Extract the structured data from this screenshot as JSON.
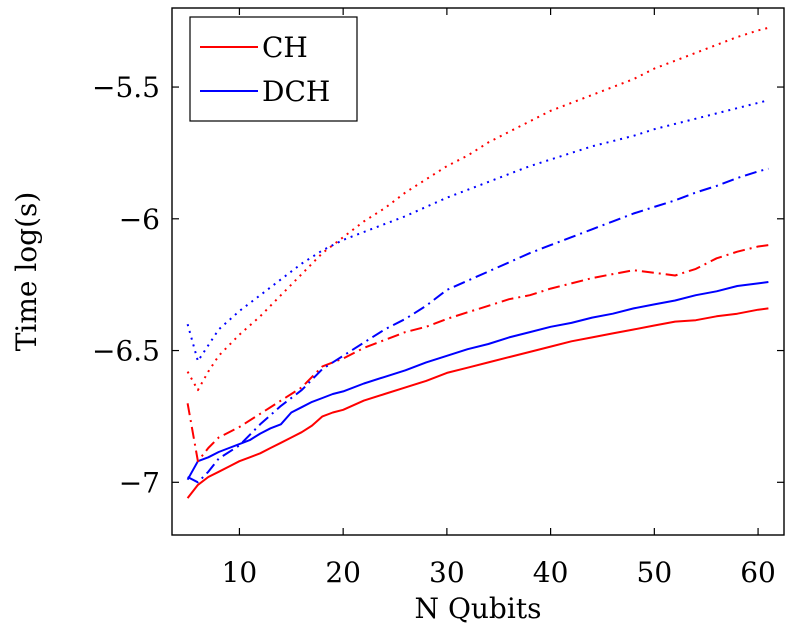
{
  "chart_data": {
    "type": "line",
    "title": "",
    "xlabel": "N Qubits",
    "ylabel": "Time log(s)",
    "xlim": [
      3.5,
      62.5
    ],
    "ylim": [
      -7.2,
      -5.2
    ],
    "grid": false,
    "legend_position": "top-left",
    "x_ticks": [
      10,
      20,
      30,
      40,
      50,
      60
    ],
    "x_tick_labels": [
      "10",
      "20",
      "30",
      "40",
      "50",
      "60"
    ],
    "y_ticks": [
      -7,
      -6.5,
      -6,
      -5.5
    ],
    "y_tick_labels": [
      "−7",
      "−6.5",
      "−6",
      "−5.5"
    ],
    "legend": [
      {
        "label": "CH",
        "color": "#ff0000"
      },
      {
        "label": "DCH",
        "color": "#0000ff"
      }
    ],
    "series": [
      {
        "label_ref": "CH",
        "color": "#ff0000",
        "style": "solid",
        "points": [
          [
            5,
            -7.06
          ],
          [
            6,
            -7.01
          ],
          [
            7,
            -6.98
          ],
          [
            8,
            -6.96
          ],
          [
            9,
            -6.94
          ],
          [
            10,
            -6.92
          ],
          [
            11,
            -6.905
          ],
          [
            12,
            -6.89
          ],
          [
            13,
            -6.87
          ],
          [
            14,
            -6.85
          ],
          [
            15,
            -6.83
          ],
          [
            16,
            -6.81
          ],
          [
            17,
            -6.785
          ],
          [
            18,
            -6.75
          ],
          [
            19,
            -6.735
          ],
          [
            20,
            -6.725
          ],
          [
            22,
            -6.69
          ],
          [
            24,
            -6.665
          ],
          [
            26,
            -6.64
          ],
          [
            28,
            -6.615
          ],
          [
            30,
            -6.585
          ],
          [
            32,
            -6.565
          ],
          [
            34,
            -6.545
          ],
          [
            36,
            -6.525
          ],
          [
            38,
            -6.505
          ],
          [
            40,
            -6.485
          ],
          [
            42,
            -6.465
          ],
          [
            44,
            -6.45
          ],
          [
            46,
            -6.435
          ],
          [
            48,
            -6.42
          ],
          [
            50,
            -6.405
          ],
          [
            52,
            -6.39
          ],
          [
            54,
            -6.385
          ],
          [
            56,
            -6.37
          ],
          [
            58,
            -6.36
          ],
          [
            60,
            -6.345
          ],
          [
            61,
            -6.34
          ]
        ]
      },
      {
        "label_ref": "DCH",
        "color": "#0000ff",
        "style": "solid",
        "points": [
          [
            5,
            -6.99
          ],
          [
            6,
            -6.92
          ],
          [
            7,
            -6.905
          ],
          [
            8,
            -6.885
          ],
          [
            9,
            -6.87
          ],
          [
            10,
            -6.855
          ],
          [
            11,
            -6.84
          ],
          [
            12,
            -6.815
          ],
          [
            13,
            -6.795
          ],
          [
            14,
            -6.78
          ],
          [
            15,
            -6.735
          ],
          [
            16,
            -6.715
          ],
          [
            17,
            -6.695
          ],
          [
            18,
            -6.68
          ],
          [
            19,
            -6.665
          ],
          [
            20,
            -6.655
          ],
          [
            22,
            -6.625
          ],
          [
            24,
            -6.6
          ],
          [
            26,
            -6.575
          ],
          [
            28,
            -6.545
          ],
          [
            30,
            -6.52
          ],
          [
            32,
            -6.495
          ],
          [
            34,
            -6.475
          ],
          [
            36,
            -6.45
          ],
          [
            38,
            -6.43
          ],
          [
            40,
            -6.41
          ],
          [
            42,
            -6.395
          ],
          [
            44,
            -6.375
          ],
          [
            46,
            -6.36
          ],
          [
            48,
            -6.34
          ],
          [
            50,
            -6.325
          ],
          [
            52,
            -6.31
          ],
          [
            54,
            -6.29
          ],
          [
            56,
            -6.275
          ],
          [
            58,
            -6.255
          ],
          [
            60,
            -6.245
          ],
          [
            61,
            -6.24
          ]
        ]
      },
      {
        "label_ref": "CH",
        "color": "#ff0000",
        "style": "dashdot",
        "points": [
          [
            5,
            -6.7
          ],
          [
            6,
            -6.92
          ],
          [
            7,
            -6.87
          ],
          [
            8,
            -6.83
          ],
          [
            10,
            -6.79
          ],
          [
            12,
            -6.74
          ],
          [
            14,
            -6.69
          ],
          [
            16,
            -6.64
          ],
          [
            18,
            -6.56
          ],
          [
            20,
            -6.53
          ],
          [
            22,
            -6.49
          ],
          [
            24,
            -6.46
          ],
          [
            26,
            -6.43
          ],
          [
            28,
            -6.41
          ],
          [
            30,
            -6.38
          ],
          [
            32,
            -6.355
          ],
          [
            34,
            -6.33
          ],
          [
            36,
            -6.305
          ],
          [
            38,
            -6.29
          ],
          [
            40,
            -6.265
          ],
          [
            42,
            -6.245
          ],
          [
            44,
            -6.225
          ],
          [
            46,
            -6.21
          ],
          [
            48,
            -6.195
          ],
          [
            50,
            -6.205
          ],
          [
            52,
            -6.215
          ],
          [
            54,
            -6.19
          ],
          [
            56,
            -6.15
          ],
          [
            58,
            -6.125
          ],
          [
            60,
            -6.105
          ],
          [
            61,
            -6.1
          ]
        ]
      },
      {
        "label_ref": "DCH",
        "color": "#0000ff",
        "style": "dashdot",
        "points": [
          [
            5,
            -6.98
          ],
          [
            6,
            -7.0
          ],
          [
            7,
            -6.96
          ],
          [
            8,
            -6.91
          ],
          [
            10,
            -6.86
          ],
          [
            12,
            -6.78
          ],
          [
            14,
            -6.71
          ],
          [
            16,
            -6.65
          ],
          [
            18,
            -6.57
          ],
          [
            20,
            -6.52
          ],
          [
            22,
            -6.47
          ],
          [
            24,
            -6.42
          ],
          [
            26,
            -6.38
          ],
          [
            28,
            -6.33
          ],
          [
            30,
            -6.27
          ],
          [
            32,
            -6.235
          ],
          [
            34,
            -6.2
          ],
          [
            36,
            -6.165
          ],
          [
            38,
            -6.13
          ],
          [
            40,
            -6.1
          ],
          [
            42,
            -6.07
          ],
          [
            44,
            -6.04
          ],
          [
            46,
            -6.01
          ],
          [
            48,
            -5.98
          ],
          [
            50,
            -5.955
          ],
          [
            52,
            -5.93
          ],
          [
            54,
            -5.9
          ],
          [
            56,
            -5.875
          ],
          [
            58,
            -5.845
          ],
          [
            60,
            -5.82
          ],
          [
            61,
            -5.81
          ]
        ]
      },
      {
        "label_ref": "CH",
        "color": "#ff0000",
        "style": "dotted",
        "points": [
          [
            5,
            -6.58
          ],
          [
            6,
            -6.65
          ],
          [
            7,
            -6.58
          ],
          [
            8,
            -6.52
          ],
          [
            10,
            -6.44
          ],
          [
            12,
            -6.37
          ],
          [
            14,
            -6.29
          ],
          [
            16,
            -6.21
          ],
          [
            18,
            -6.13
          ],
          [
            20,
            -6.07
          ],
          [
            22,
            -6.01
          ],
          [
            24,
            -5.96
          ],
          [
            26,
            -5.9
          ],
          [
            28,
            -5.85
          ],
          [
            30,
            -5.8
          ],
          [
            32,
            -5.76
          ],
          [
            34,
            -5.71
          ],
          [
            36,
            -5.67
          ],
          [
            38,
            -5.63
          ],
          [
            40,
            -5.59
          ],
          [
            42,
            -5.56
          ],
          [
            44,
            -5.53
          ],
          [
            46,
            -5.5
          ],
          [
            48,
            -5.47
          ],
          [
            50,
            -5.43
          ],
          [
            52,
            -5.4
          ],
          [
            54,
            -5.37
          ],
          [
            56,
            -5.34
          ],
          [
            58,
            -5.31
          ],
          [
            60,
            -5.285
          ],
          [
            61,
            -5.275
          ]
        ]
      },
      {
        "label_ref": "DCH",
        "color": "#0000ff",
        "style": "dotted",
        "points": [
          [
            5,
            -6.4
          ],
          [
            6,
            -6.54
          ],
          [
            7,
            -6.48
          ],
          [
            8,
            -6.42
          ],
          [
            10,
            -6.35
          ],
          [
            12,
            -6.29
          ],
          [
            14,
            -6.23
          ],
          [
            16,
            -6.17
          ],
          [
            18,
            -6.12
          ],
          [
            20,
            -6.08
          ],
          [
            22,
            -6.05
          ],
          [
            24,
            -6.02
          ],
          [
            26,
            -5.99
          ],
          [
            28,
            -5.955
          ],
          [
            30,
            -5.92
          ],
          [
            32,
            -5.89
          ],
          [
            34,
            -5.86
          ],
          [
            36,
            -5.83
          ],
          [
            38,
            -5.8
          ],
          [
            40,
            -5.775
          ],
          [
            42,
            -5.75
          ],
          [
            44,
            -5.725
          ],
          [
            46,
            -5.705
          ],
          [
            48,
            -5.685
          ],
          [
            50,
            -5.66
          ],
          [
            52,
            -5.64
          ],
          [
            54,
            -5.62
          ],
          [
            56,
            -5.6
          ],
          [
            58,
            -5.58
          ],
          [
            60,
            -5.56
          ],
          [
            61,
            -5.55
          ]
        ]
      }
    ]
  }
}
